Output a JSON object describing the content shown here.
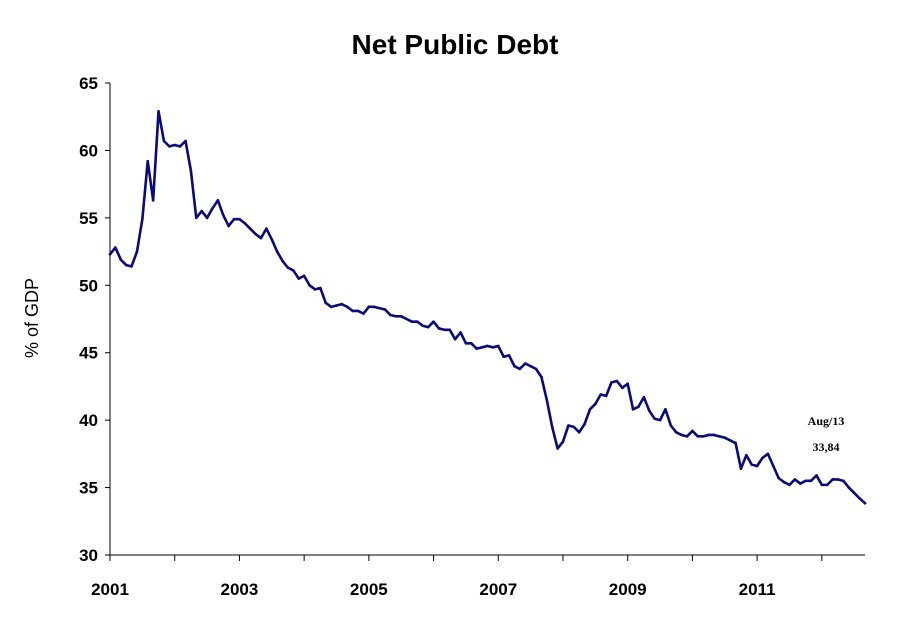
{
  "chart_data": {
    "type": "line",
    "title": "Net Public Debt",
    "ylabel": "% of GDP",
    "xlabel": "",
    "ylim": [
      30,
      65
    ],
    "yticks": [
      30,
      35,
      40,
      45,
      50,
      55,
      60,
      65
    ],
    "xlim": [
      2001.0,
      2012.667
    ],
    "xticks": [
      "2001",
      "2003",
      "2005",
      "2007",
      "2009",
      "2011"
    ],
    "grid": false,
    "legend": "none",
    "colors": {
      "line": "#0a0a78"
    },
    "annotation": {
      "period": "Aug/13",
      "value": "33,84"
    },
    "series": [
      {
        "x": [
          2001.0,
          2001.083,
          2001.167,
          2001.25,
          2001.333,
          2001.417,
          2001.5,
          2001.583,
          2001.667,
          2001.75,
          2001.833,
          2001.917,
          2002.0,
          2002.083,
          2002.167,
          2002.25,
          2002.333,
          2002.417,
          2002.5,
          2002.583,
          2002.667,
          2002.75,
          2002.833,
          2002.917,
          2003.0,
          2003.083,
          2003.167,
          2003.25,
          2003.333,
          2003.417,
          2003.5,
          2003.583,
          2003.667,
          2003.75,
          2003.833,
          2003.917,
          2004.0,
          2004.083,
          2004.167,
          2004.25,
          2004.333,
          2004.417,
          2004.5,
          2004.583,
          2004.667,
          2004.75,
          2004.833,
          2004.917,
          2005.0,
          2005.083,
          2005.167,
          2005.25,
          2005.333,
          2005.417,
          2005.5,
          2005.583,
          2005.667,
          2005.75,
          2005.833,
          2005.917,
          2006.0,
          2006.083,
          2006.167,
          2006.25,
          2006.333,
          2006.417,
          2006.5,
          2006.583,
          2006.667,
          2006.75,
          2006.833,
          2006.917,
          2007.0,
          2007.083,
          2007.167,
          2007.25,
          2007.333,
          2007.417,
          2007.5,
          2007.583,
          2007.667,
          2007.75,
          2007.833,
          2007.917,
          2008.0,
          2008.083,
          2008.167,
          2008.25,
          2008.333,
          2008.417,
          2008.5,
          2008.583,
          2008.667,
          2008.75,
          2008.833,
          2008.917,
          2009.0,
          2009.083,
          2009.167,
          2009.25,
          2009.333,
          2009.417,
          2009.5,
          2009.583,
          2009.667,
          2009.75,
          2009.833,
          2009.917,
          2010.0,
          2010.083,
          2010.167,
          2010.25,
          2010.333,
          2010.417,
          2010.5,
          2010.583,
          2010.667,
          2010.75,
          2010.833,
          2010.917,
          2011.0,
          2011.083,
          2011.167,
          2011.25,
          2011.333,
          2011.417,
          2011.5,
          2011.583,
          2011.667,
          2011.75,
          2011.833,
          2011.917,
          2012.0,
          2012.083,
          2012.167,
          2012.25,
          2012.333,
          2012.417,
          2012.5,
          2012.583,
          2012.667
        ],
        "values": [
          52.3,
          52.8,
          51.9,
          51.5,
          51.4,
          52.5,
          54.9,
          59.2,
          56.3,
          62.9,
          60.7,
          60.3,
          60.4,
          60.3,
          60.7,
          58.5,
          55.0,
          55.5,
          55.0,
          55.7,
          56.3,
          55.2,
          54.4,
          54.9,
          54.9,
          54.6,
          54.2,
          53.8,
          53.5,
          54.2,
          53.4,
          52.5,
          51.8,
          51.3,
          51.1,
          50.5,
          50.7,
          50.0,
          49.7,
          49.8,
          48.7,
          48.4,
          48.5,
          48.6,
          48.4,
          48.1,
          48.1,
          47.9,
          48.4,
          48.4,
          48.3,
          48.2,
          47.8,
          47.7,
          47.7,
          47.5,
          47.3,
          47.3,
          47.0,
          46.9,
          47.3,
          46.8,
          46.7,
          46.7,
          46.0,
          46.5,
          45.7,
          45.7,
          45.3,
          45.4,
          45.5,
          45.4,
          45.5,
          44.7,
          44.8,
          44.0,
          43.8,
          44.2,
          44.0,
          43.8,
          43.2,
          41.5,
          39.5,
          37.9,
          38.4,
          39.6,
          39.5,
          39.1,
          39.7,
          40.8,
          41.2,
          41.9,
          41.8,
          42.8,
          42.9,
          42.4,
          42.7,
          40.8,
          41.0,
          41.7,
          40.7,
          40.1,
          40.0,
          40.8,
          39.6,
          39.1,
          38.9,
          38.8,
          39.2,
          38.8,
          38.8,
          38.9,
          38.9,
          38.8,
          38.7,
          38.5,
          38.3,
          36.4,
          37.4,
          36.7,
          36.6,
          37.2,
          37.5,
          36.6,
          35.7,
          35.4,
          35.2,
          35.6,
          35.3,
          35.5,
          35.5,
          35.9,
          35.2,
          35.2,
          35.6,
          35.6,
          35.5,
          35.0,
          34.6,
          34.2,
          33.84
        ]
      }
    ]
  }
}
